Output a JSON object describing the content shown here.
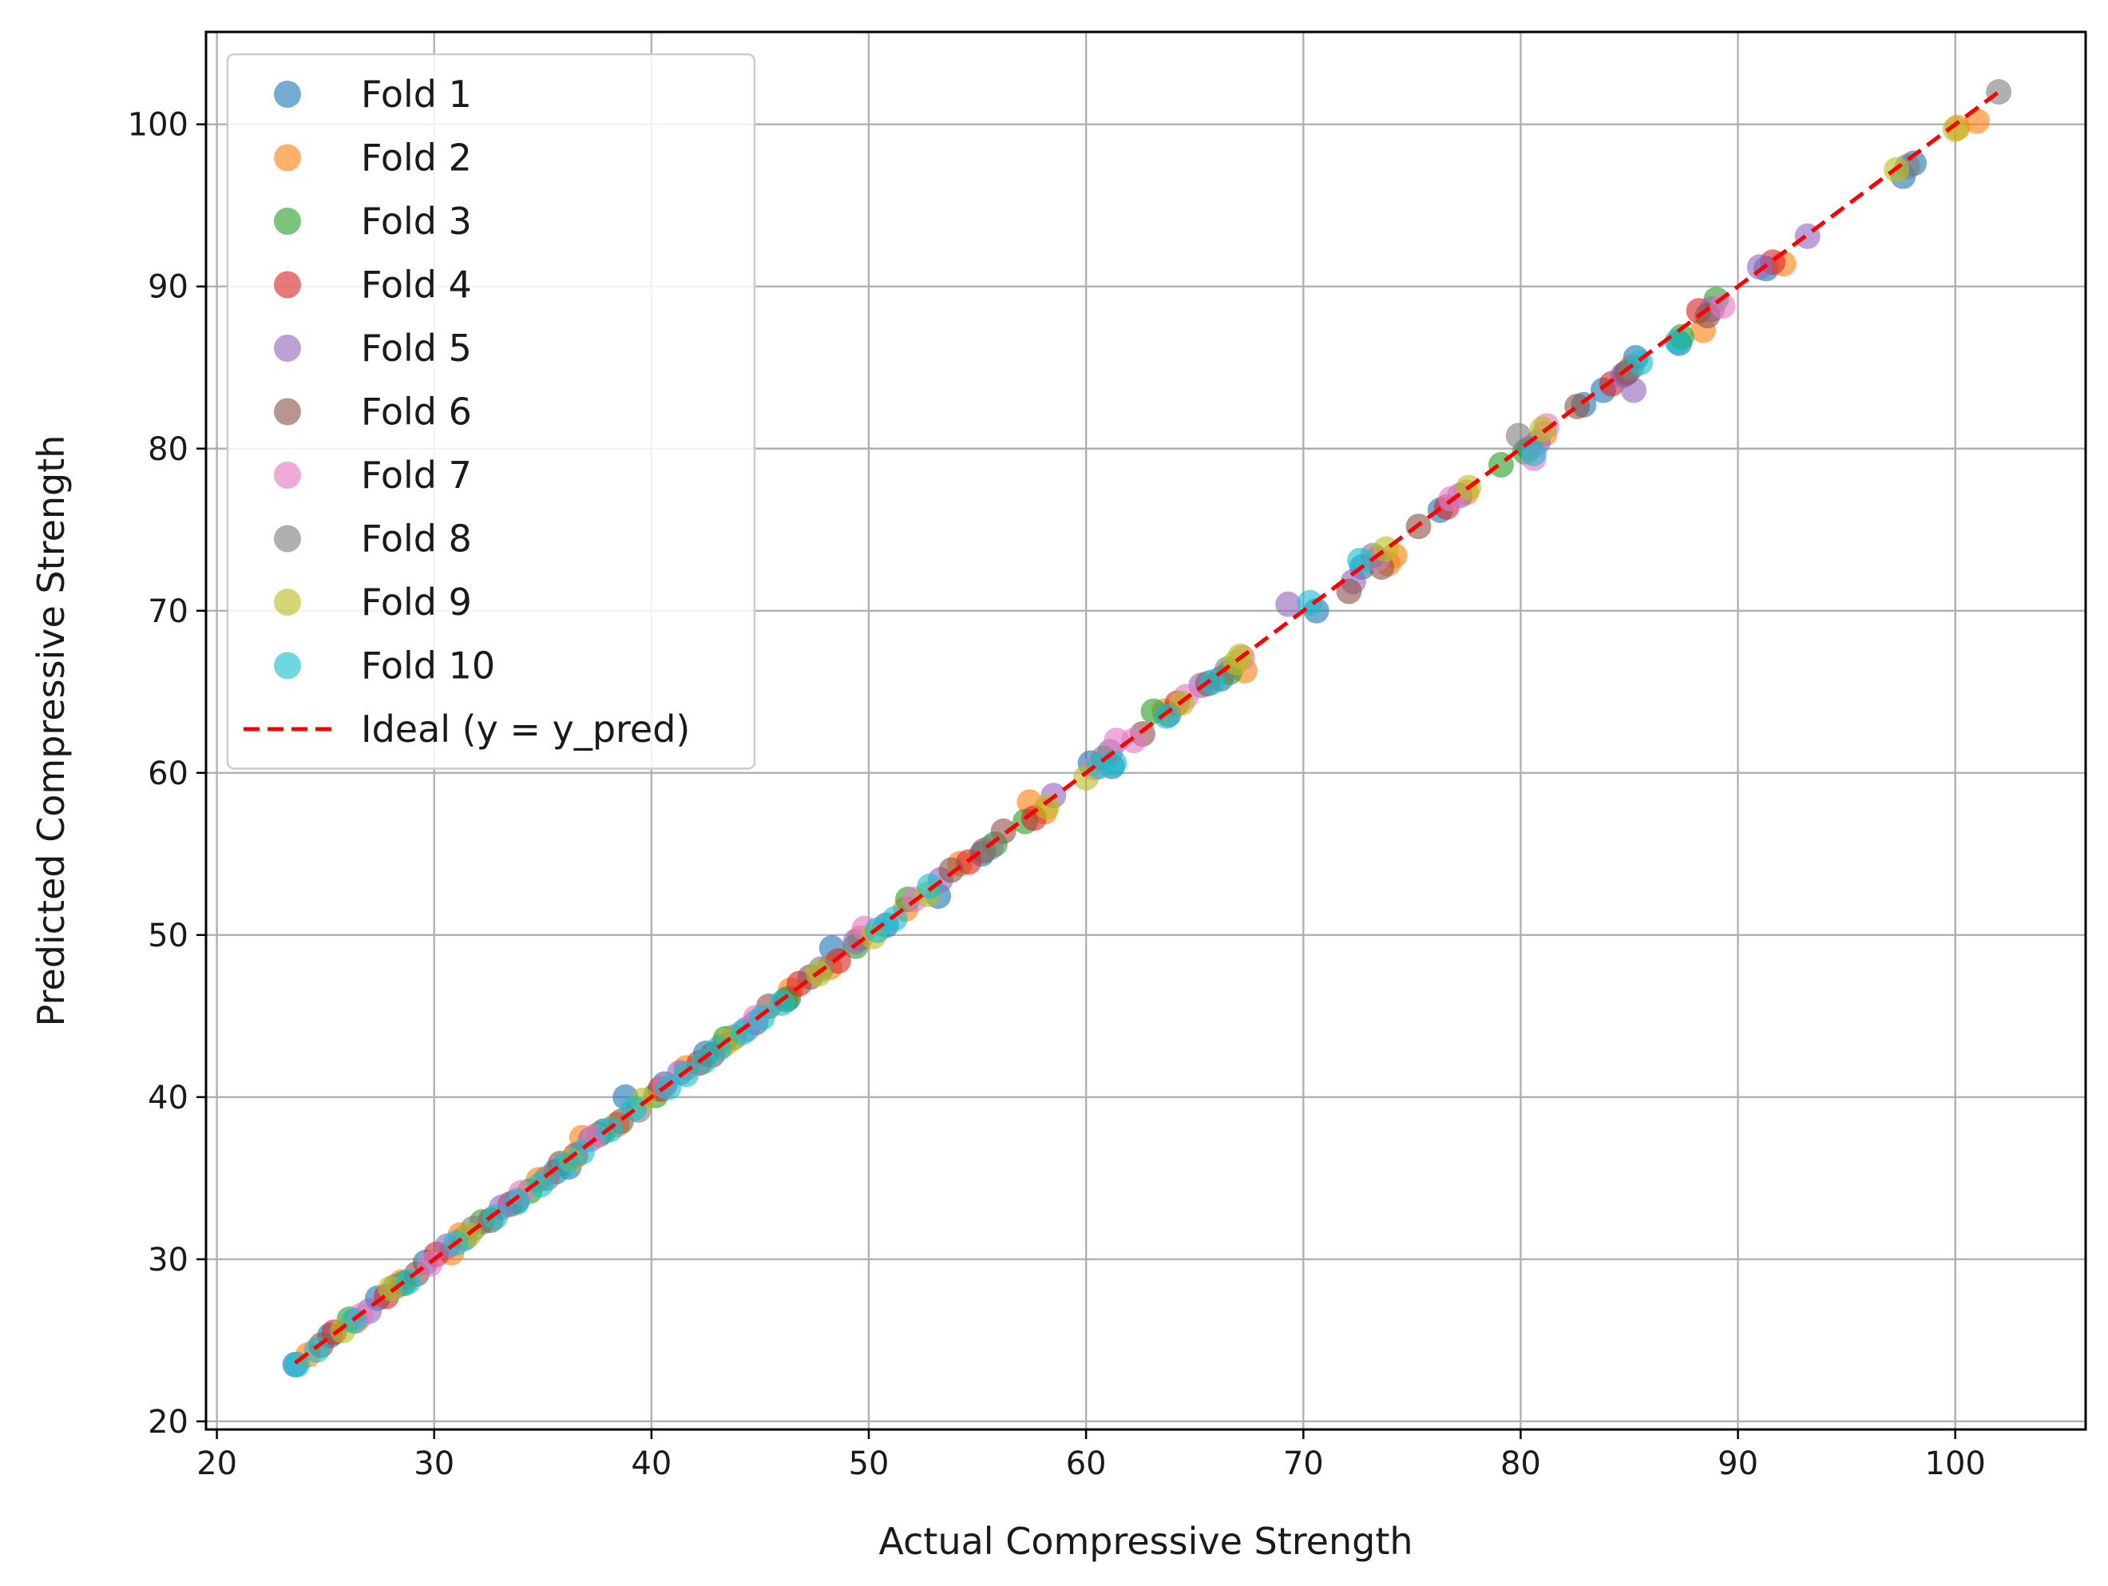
{
  "chart_data": {
    "type": "scatter",
    "title": "",
    "xlabel": "Actual Compressive Strength",
    "ylabel": "Predicted Compressive Strength",
    "xlim": [
      19.5,
      106
    ],
    "ylim": [
      19.5,
      105.7
    ],
    "x_ticks": [
      20,
      30,
      40,
      50,
      60,
      70,
      80,
      90,
      100
    ],
    "y_ticks": [
      20,
      30,
      40,
      50,
      60,
      70,
      80,
      90,
      100
    ],
    "grid": true,
    "legend_position": "top-left",
    "series": [
      {
        "name": "Fold 1",
        "color": "#1f77b4",
        "points": [
          [
            23.6,
            23.5
          ],
          [
            25.2,
            25.3
          ],
          [
            27.4,
            27.6
          ],
          [
            29.6,
            29.8
          ],
          [
            31.4,
            31.3
          ],
          [
            33.8,
            33.6
          ],
          [
            35.6,
            35.4
          ],
          [
            36.2,
            35.7
          ],
          [
            37.8,
            37.9
          ],
          [
            38.8,
            40.0
          ],
          [
            40.6,
            40.8
          ],
          [
            42.5,
            42.7
          ],
          [
            44.8,
            44.6
          ],
          [
            46.3,
            46.1
          ],
          [
            48.3,
            49.2
          ],
          [
            50.8,
            50.6
          ],
          [
            53.2,
            52.4
          ],
          [
            55.2,
            55.0
          ],
          [
            60.2,
            60.6
          ],
          [
            61.2,
            60.4
          ],
          [
            63.8,
            63.6
          ],
          [
            66.2,
            65.8
          ],
          [
            70.6,
            70.0
          ],
          [
            72.7,
            72.7
          ],
          [
            76.3,
            76.2
          ],
          [
            80.4,
            80.0
          ],
          [
            82.9,
            82.7
          ],
          [
            83.8,
            83.6
          ],
          [
            84.8,
            84.6
          ],
          [
            85.3,
            85.6
          ],
          [
            87.3,
            86.5
          ],
          [
            91.3,
            91.1
          ],
          [
            97.6,
            96.8
          ],
          [
            98.1,
            97.6
          ]
        ]
      },
      {
        "name": "Fold 2",
        "color": "#ff7f0e",
        "points": [
          [
            24.2,
            24.1
          ],
          [
            26.4,
            26.2
          ],
          [
            28.5,
            28.6
          ],
          [
            30.8,
            30.4
          ],
          [
            31.2,
            31.5
          ],
          [
            34.8,
            34.9
          ],
          [
            36.8,
            37.5
          ],
          [
            38.4,
            38.3
          ],
          [
            41.6,
            41.8
          ],
          [
            43.3,
            43.2
          ],
          [
            46.4,
            46.6
          ],
          [
            48.2,
            48.0
          ],
          [
            49.6,
            49.8
          ],
          [
            51.7,
            51.6
          ],
          [
            54.2,
            54.4
          ],
          [
            57.4,
            58.2
          ],
          [
            58.1,
            57.6
          ],
          [
            63.6,
            63.8
          ],
          [
            67.3,
            66.3
          ],
          [
            73.9,
            72.9
          ],
          [
            74.2,
            73.4
          ],
          [
            77.5,
            77.3
          ],
          [
            81.1,
            80.9
          ],
          [
            88.4,
            87.3
          ],
          [
            92.1,
            91.4
          ],
          [
            100.1,
            99.8
          ],
          [
            101.0,
            100.2
          ]
        ]
      },
      {
        "name": "Fold 3",
        "color": "#2ca02c",
        "points": [
          [
            26.1,
            26.3
          ],
          [
            28.6,
            28.5
          ],
          [
            32.2,
            32.3
          ],
          [
            34.4,
            34.2
          ],
          [
            37.6,
            37.7
          ],
          [
            40.2,
            40.1
          ],
          [
            43.4,
            43.6
          ],
          [
            46.2,
            46.0
          ],
          [
            49.4,
            49.3
          ],
          [
            51.8,
            52.2
          ],
          [
            55.8,
            55.6
          ],
          [
            57.2,
            57.0
          ],
          [
            63.1,
            63.8
          ],
          [
            66.6,
            66.2
          ],
          [
            79.1,
            79.0
          ],
          [
            80.2,
            79.8
          ],
          [
            87.4,
            86.9
          ],
          [
            89.0,
            89.2
          ]
        ]
      },
      {
        "name": "Fold 4",
        "color": "#d62728",
        "points": [
          [
            25.4,
            25.5
          ],
          [
            27.8,
            27.7
          ],
          [
            30.1,
            30.3
          ],
          [
            33.5,
            33.4
          ],
          [
            36.5,
            36.4
          ],
          [
            40.4,
            40.5
          ],
          [
            42.2,
            42.1
          ],
          [
            46.8,
            47.0
          ],
          [
            48.6,
            48.4
          ],
          [
            54.6,
            54.5
          ],
          [
            57.6,
            57.2
          ],
          [
            64.2,
            64.3
          ],
          [
            76.6,
            76.4
          ],
          [
            84.2,
            84.0
          ],
          [
            88.2,
            88.5
          ],
          [
            91.6,
            91.5
          ]
        ]
      },
      {
        "name": "Fold 5",
        "color": "#9467bd",
        "points": [
          [
            27.0,
            26.8
          ],
          [
            30.6,
            30.8
          ],
          [
            33.1,
            33.2
          ],
          [
            37.2,
            37.4
          ],
          [
            41.3,
            41.5
          ],
          [
            44.4,
            44.2
          ],
          [
            49.4,
            49.6
          ],
          [
            53.3,
            53.4
          ],
          [
            58.5,
            58.6
          ],
          [
            61.1,
            61.3
          ],
          [
            65.3,
            65.4
          ],
          [
            69.3,
            70.4
          ],
          [
            72.3,
            71.8
          ],
          [
            77.2,
            77.1
          ],
          [
            80.8,
            80.4
          ],
          [
            84.7,
            84.5
          ],
          [
            85.2,
            83.6
          ],
          [
            88.8,
            88.6
          ],
          [
            91.0,
            91.2
          ],
          [
            93.2,
            93.1
          ]
        ]
      },
      {
        "name": "Fold 6",
        "color": "#8c564b",
        "points": [
          [
            24.8,
            24.7
          ],
          [
            29.2,
            29.1
          ],
          [
            32.6,
            32.4
          ],
          [
            35.8,
            35.9
          ],
          [
            38.6,
            38.5
          ],
          [
            42.8,
            42.6
          ],
          [
            45.4,
            45.6
          ],
          [
            47.3,
            47.4
          ],
          [
            53.8,
            54.0
          ],
          [
            55.3,
            55.2
          ],
          [
            56.2,
            56.4
          ],
          [
            62.6,
            62.4
          ],
          [
            65.6,
            65.5
          ],
          [
            72.1,
            71.2
          ],
          [
            73.6,
            72.7
          ],
          [
            75.3,
            75.2
          ],
          [
            82.6,
            82.6
          ],
          [
            84.9,
            84.7
          ],
          [
            88.6,
            88.2
          ]
        ]
      },
      {
        "name": "Fold 7",
        "color": "#e377c2",
        "points": [
          [
            26.6,
            26.5
          ],
          [
            29.8,
            29.7
          ],
          [
            34.0,
            34.1
          ],
          [
            37.4,
            37.6
          ],
          [
            40.6,
            40.7
          ],
          [
            44.8,
            44.9
          ],
          [
            49.8,
            50.4
          ],
          [
            52.1,
            52.2
          ],
          [
            60.4,
            60.3
          ],
          [
            61.4,
            62.0
          ],
          [
            62.2,
            62.0
          ],
          [
            64.6,
            64.7
          ],
          [
            67.2,
            67.1
          ],
          [
            73.4,
            73.2
          ],
          [
            76.8,
            76.9
          ],
          [
            80.6,
            79.4
          ],
          [
            81.2,
            81.4
          ],
          [
            89.3,
            88.8
          ]
        ]
      },
      {
        "name": "Fold 8",
        "color": "#7f7f7f",
        "points": [
          [
            28.2,
            28.3
          ],
          [
            31.8,
            31.9
          ],
          [
            35.2,
            35.0
          ],
          [
            39.4,
            39.2
          ],
          [
            43.8,
            43.7
          ],
          [
            47.8,
            47.9
          ],
          [
            55.6,
            55.4
          ],
          [
            60.8,
            60.9
          ],
          [
            66.5,
            66.4
          ],
          [
            73.2,
            73.4
          ],
          [
            79.9,
            80.8
          ],
          [
            85.1,
            85.0
          ],
          [
            97.8,
            97.4
          ],
          [
            102.0,
            102.0
          ]
        ]
      },
      {
        "name": "Fold 9",
        "color": "#bcbd22",
        "points": [
          [
            25.8,
            25.6
          ],
          [
            28.0,
            28.2
          ],
          [
            31.6,
            31.5
          ],
          [
            36.3,
            36.1
          ],
          [
            39.6,
            39.8
          ],
          [
            43.6,
            43.5
          ],
          [
            47.7,
            47.6
          ],
          [
            50.2,
            49.9
          ],
          [
            52.7,
            52.5
          ],
          [
            58.2,
            57.9
          ],
          [
            60.0,
            59.7
          ],
          [
            64.4,
            64.3
          ],
          [
            66.9,
            66.8
          ],
          [
            67.1,
            67.2
          ],
          [
            73.8,
            73.8
          ],
          [
            77.6,
            77.6
          ],
          [
            81.0,
            81.2
          ],
          [
            97.3,
            97.2
          ],
          [
            100.0,
            99.7
          ]
        ]
      },
      {
        "name": "Fold 10",
        "color": "#17becf",
        "points": [
          [
            23.7,
            23.5
          ],
          [
            24.6,
            24.4
          ],
          [
            26.3,
            26.2
          ],
          [
            28.8,
            28.6
          ],
          [
            31.0,
            31.0
          ],
          [
            32.8,
            32.6
          ],
          [
            33.8,
            33.5
          ],
          [
            34.9,
            34.6
          ],
          [
            36.0,
            35.8
          ],
          [
            36.8,
            36.6
          ],
          [
            38.1,
            38.0
          ],
          [
            39.2,
            39.3
          ],
          [
            40.8,
            40.6
          ],
          [
            41.6,
            41.4
          ],
          [
            42.4,
            42.2
          ],
          [
            43.1,
            43.0
          ],
          [
            44.2,
            44.0
          ],
          [
            45.1,
            44.9
          ],
          [
            46.0,
            45.8
          ],
          [
            50.4,
            50.3
          ],
          [
            51.2,
            51.0
          ],
          [
            52.8,
            53.0
          ],
          [
            60.6,
            60.4
          ],
          [
            61.3,
            60.6
          ],
          [
            63.7,
            63.5
          ],
          [
            65.8,
            65.6
          ],
          [
            70.3,
            70.5
          ],
          [
            72.6,
            73.1
          ],
          [
            80.6,
            79.7
          ],
          [
            85.5,
            85.3
          ],
          [
            87.2,
            86.6
          ]
        ]
      }
    ],
    "reference_line": {
      "name": "Ideal (y = y_pred)",
      "color": "#ff0000",
      "style": "dashed",
      "x": [
        23.6,
        102.0
      ],
      "y": [
        23.6,
        102.0
      ]
    }
  }
}
